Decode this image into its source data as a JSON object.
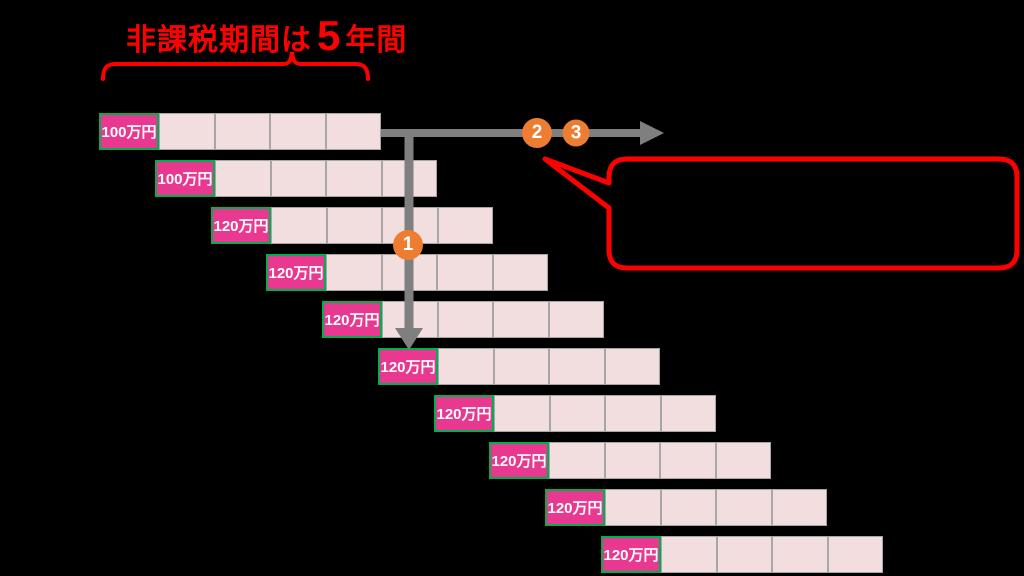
{
  "title": {
    "prefix": "非課税期間は",
    "number": "5",
    "suffix": "年間"
  },
  "bars": [
    {
      "label": "100万円"
    },
    {
      "label": "100万円"
    },
    {
      "label": "120万円"
    },
    {
      "label": "120万円"
    },
    {
      "label": "120万円"
    },
    {
      "label": "120万円"
    },
    {
      "label": "120万円"
    },
    {
      "label": "120万円"
    },
    {
      "label": "120万円"
    },
    {
      "label": "120万円"
    }
  ],
  "years_per_bar": 5,
  "empty_cells_per_bar": 4,
  "markers": [
    {
      "label": "1"
    },
    {
      "label": "2"
    },
    {
      "label": "3"
    }
  ],
  "callout": {
    "text": ""
  },
  "colors": {
    "bg": "#000000",
    "amount": "#E8388F",
    "cell": "#F2DEDF",
    "cellborder": "#A6A6A6",
    "labelborder": "#00B050",
    "arrow": "#7F7F7F",
    "marker": "#ED7D31",
    "annotation": "#FF0000"
  }
}
